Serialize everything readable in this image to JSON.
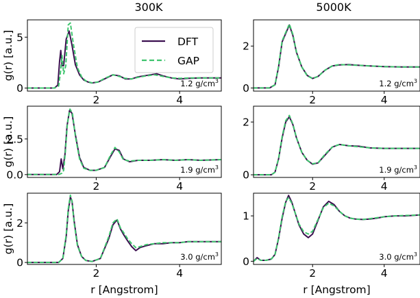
{
  "col_titles": [
    "300K",
    "5000K"
  ],
  "ylabel": "g(r) [a.u.]",
  "xlabel": "r [Angstrom]",
  "legend": [
    {
      "label": "DFT",
      "color": "#3b0f4f",
      "dash": false
    },
    {
      "label": "GAP",
      "color": "#3ec46d",
      "dash": true
    }
  ],
  "chart_data": [
    {
      "type": "line",
      "temperature": "300K",
      "density": "1.2 g/cm",
      "density_sup": "3",
      "xlim": [
        0.35,
        5.0
      ],
      "ylim": [
        -0.3,
        6.7
      ],
      "xticks": [
        2,
        4
      ],
      "yticks": [
        0,
        5
      ],
      "ytick_labels": [
        "0",
        "5"
      ],
      "show_xlabel": false,
      "show_ylabel": true,
      "show_legend": true,
      "series": [
        {
          "name": "DFT",
          "x": [
            0.35,
            1.0,
            1.08,
            1.12,
            1.15,
            1.18,
            1.22,
            1.28,
            1.35,
            1.42,
            1.5,
            1.6,
            1.7,
            1.8,
            1.9,
            2.05,
            2.2,
            2.4,
            2.55,
            2.7,
            2.85,
            3.0,
            3.15,
            3.3,
            3.45,
            3.6,
            3.8,
            4.0,
            4.2,
            4.5,
            4.8,
            5.0
          ],
          "y": [
            0,
            0,
            0.3,
            2.6,
            3.7,
            2.2,
            2.2,
            4.8,
            5.6,
            4.2,
            2.3,
            1.3,
            0.8,
            0.6,
            0.5,
            0.6,
            0.9,
            1.3,
            1.2,
            0.9,
            0.9,
            1.1,
            1.2,
            1.3,
            1.4,
            1.2,
            1.0,
            0.9,
            0.95,
            1.0,
            1.0,
            1.0
          ]
        },
        {
          "name": "GAP",
          "x": [
            0.35,
            1.0,
            1.1,
            1.15,
            1.18,
            1.22,
            1.27,
            1.33,
            1.38,
            1.45,
            1.55,
            1.65,
            1.75,
            1.9,
            2.05,
            2.2,
            2.4,
            2.55,
            2.7,
            2.85,
            3.0,
            3.2,
            3.4,
            3.6,
            3.8,
            4.0,
            4.3,
            4.6,
            5.0
          ],
          "y": [
            0,
            0,
            0.2,
            1.8,
            3.2,
            1.4,
            2.2,
            6.2,
            6.4,
            4.4,
            2.0,
            1.1,
            0.7,
            0.5,
            0.6,
            0.95,
            1.3,
            1.15,
            0.95,
            0.9,
            1.05,
            1.2,
            1.3,
            1.15,
            1.0,
            0.95,
            1.0,
            1.0,
            1.0
          ]
        }
      ]
    },
    {
      "type": "line",
      "temperature": "5000K",
      "density": "1.2 g/cm",
      "density_sup": "3",
      "xlim": [
        0.35,
        5.0
      ],
      "ylim": [
        -0.15,
        3.25
      ],
      "xticks": [
        2,
        4
      ],
      "yticks": [
        0,
        2
      ],
      "ytick_labels": [
        "0",
        "2"
      ],
      "show_xlabel": false,
      "show_ylabel": false,
      "show_legend": false,
      "series": [
        {
          "name": "DFT",
          "x": [
            0.35,
            0.8,
            0.95,
            1.05,
            1.15,
            1.25,
            1.35,
            1.45,
            1.55,
            1.7,
            1.85,
            2.0,
            2.15,
            2.35,
            2.55,
            2.75,
            3.0,
            3.3,
            3.6,
            4.0,
            4.5,
            5.0
          ],
          "y": [
            0,
            0,
            0.15,
            1.0,
            2.2,
            2.6,
            3.0,
            2.5,
            1.7,
            1.0,
            0.6,
            0.45,
            0.55,
            0.85,
            1.05,
            1.1,
            1.12,
            1.08,
            1.05,
            1.02,
            1.0,
            1.0
          ]
        },
        {
          "name": "GAP",
          "x": [
            0.35,
            0.8,
            0.95,
            1.05,
            1.15,
            1.25,
            1.35,
            1.45,
            1.55,
            1.7,
            1.85,
            2.0,
            2.15,
            2.35,
            2.55,
            2.75,
            3.0,
            3.3,
            3.6,
            4.0,
            4.5,
            5.0
          ],
          "y": [
            0,
            0,
            0.15,
            1.05,
            2.25,
            2.65,
            3.05,
            2.55,
            1.72,
            1.0,
            0.58,
            0.45,
            0.55,
            0.85,
            1.05,
            1.12,
            1.1,
            1.08,
            1.05,
            1.02,
            1.0,
            1.0
          ]
        }
      ]
    },
    {
      "type": "line",
      "temperature": "300K",
      "density": "1.9 g/cm",
      "density_sup": "3",
      "xlim": [
        0.35,
        5.0
      ],
      "ylim": [
        -0.2,
        4.8
      ],
      "xticks": [
        2,
        4
      ],
      "yticks": [
        0,
        2.5
      ],
      "ytick_labels": [
        "0.0",
        "2.5"
      ],
      "show_xlabel": false,
      "show_ylabel": true,
      "show_legend": false,
      "series": [
        {
          "name": "DFT",
          "x": [
            0.35,
            1.05,
            1.12,
            1.16,
            1.2,
            1.25,
            1.3,
            1.36,
            1.42,
            1.5,
            1.6,
            1.7,
            1.85,
            2.0,
            2.2,
            2.35,
            2.45,
            2.55,
            2.65,
            2.8,
            3.0,
            3.3,
            3.6,
            3.9,
            4.2,
            4.5,
            5.0
          ],
          "y": [
            0,
            0,
            0.2,
            1.1,
            0.4,
            1.4,
            3.4,
            4.5,
            4.3,
            2.8,
            1.2,
            0.5,
            0.3,
            0.3,
            0.5,
            1.3,
            1.8,
            1.7,
            1.1,
            0.9,
            1.0,
            1.0,
            1.05,
            1.0,
            1.05,
            1.0,
            1.05
          ]
        },
        {
          "name": "GAP",
          "x": [
            0.35,
            1.1,
            1.18,
            1.22,
            1.26,
            1.31,
            1.37,
            1.43,
            1.5,
            1.6,
            1.7,
            1.85,
            2.0,
            2.2,
            2.35,
            2.45,
            2.55,
            2.65,
            2.8,
            3.0,
            3.3,
            3.6,
            3.9,
            4.2,
            4.5,
            5.0
          ],
          "y": [
            0,
            0,
            0.1,
            0.3,
            1.6,
            3.6,
            4.6,
            4.3,
            2.7,
            1.1,
            0.45,
            0.3,
            0.3,
            0.5,
            1.4,
            1.9,
            1.6,
            1.05,
            0.95,
            1.0,
            1.0,
            1.05,
            1.0,
            1.05,
            1.0,
            1.05
          ]
        }
      ]
    },
    {
      "type": "line",
      "temperature": "5000K",
      "density": "1.9 g/cm",
      "density_sup": "3",
      "xlim": [
        0.35,
        5.0
      ],
      "ylim": [
        -0.1,
        2.6
      ],
      "xticks": [
        2,
        4
      ],
      "yticks": [
        0,
        2
      ],
      "ytick_labels": [
        "0",
        "2"
      ],
      "show_xlabel": false,
      "show_ylabel": false,
      "show_legend": false,
      "series": [
        {
          "name": "DFT",
          "x": [
            0.35,
            0.85,
            0.95,
            1.05,
            1.15,
            1.25,
            1.35,
            1.45,
            1.55,
            1.7,
            1.85,
            2.0,
            2.15,
            2.35,
            2.55,
            2.75,
            3.0,
            3.3,
            3.6,
            4.0,
            4.5,
            5.0
          ],
          "y": [
            0,
            0,
            0.1,
            0.6,
            1.4,
            2.0,
            2.2,
            1.9,
            1.4,
            0.85,
            0.55,
            0.4,
            0.45,
            0.75,
            1.05,
            1.15,
            1.1,
            1.08,
            1.02,
            1.0,
            1.0,
            1.0
          ]
        },
        {
          "name": "GAP",
          "x": [
            0.35,
            0.85,
            0.95,
            1.05,
            1.15,
            1.25,
            1.35,
            1.45,
            1.55,
            1.7,
            1.85,
            2.0,
            2.15,
            2.35,
            2.55,
            2.75,
            3.0,
            3.3,
            3.6,
            4.0,
            4.5,
            5.0
          ],
          "y": [
            0,
            0,
            0.1,
            0.62,
            1.45,
            2.05,
            2.25,
            1.92,
            1.4,
            0.85,
            0.55,
            0.42,
            0.45,
            0.78,
            1.05,
            1.15,
            1.1,
            1.06,
            1.02,
            1.0,
            1.0,
            1.0
          ]
        }
      ]
    },
    {
      "type": "line",
      "temperature": "300K",
      "density": "3.0 g/cm",
      "density_sup": "3",
      "xlim": [
        0.35,
        5.0
      ],
      "ylim": [
        -0.1,
        3.5
      ],
      "xticks": [
        2,
        4
      ],
      "yticks": [
        0,
        2
      ],
      "ytick_labels": [
        "0",
        "2"
      ],
      "show_xlabel": true,
      "show_ylabel": true,
      "show_legend": false,
      "series": [
        {
          "name": "DFT",
          "x": [
            0.35,
            1.1,
            1.2,
            1.28,
            1.33,
            1.38,
            1.42,
            1.47,
            1.55,
            1.65,
            1.75,
            1.9,
            2.1,
            2.3,
            2.4,
            2.5,
            2.58,
            2.66,
            2.75,
            2.85,
            2.95,
            3.05,
            3.2,
            3.4,
            3.6,
            3.8,
            4.0,
            4.2,
            4.5,
            4.8,
            5.0
          ],
          "y": [
            0,
            0,
            0.2,
            1.3,
            2.6,
            3.3,
            3.1,
            2.1,
            0.9,
            0.3,
            0.1,
            0.05,
            0.2,
            1.2,
            1.9,
            2.15,
            1.7,
            1.4,
            1.1,
            0.8,
            0.6,
            0.75,
            0.85,
            0.95,
            0.95,
            1.0,
            1.0,
            1.05,
            1.05,
            1.05,
            1.05
          ]
        },
        {
          "name": "GAP",
          "x": [
            0.35,
            1.1,
            1.2,
            1.28,
            1.33,
            1.38,
            1.42,
            1.47,
            1.55,
            1.65,
            1.75,
            1.9,
            2.1,
            2.3,
            2.4,
            2.5,
            2.58,
            2.66,
            2.75,
            2.85,
            2.95,
            3.05,
            3.2,
            3.4,
            3.6,
            3.8,
            4.0,
            4.2,
            4.5,
            4.8,
            5.0
          ],
          "y": [
            0,
            0,
            0.2,
            1.4,
            2.7,
            3.4,
            3.1,
            2.0,
            0.85,
            0.3,
            0.1,
            0.05,
            0.2,
            1.3,
            2.0,
            2.2,
            1.75,
            1.5,
            1.2,
            0.95,
            0.75,
            0.8,
            0.9,
            0.95,
            1.0,
            1.0,
            1.0,
            1.05,
            1.05,
            1.05,
            1.05
          ]
        }
      ]
    },
    {
      "type": "line",
      "temperature": "5000K",
      "density": "3.0 g/cm",
      "density_sup": "3",
      "xlim": [
        0.35,
        5.0
      ],
      "ylim": [
        -0.07,
        1.5
      ],
      "xticks": [
        2,
        4
      ],
      "yticks": [
        0,
        1
      ],
      "ytick_labels": [
        "0",
        "1"
      ],
      "show_xlabel": true,
      "show_ylabel": false,
      "show_legend": false,
      "series": [
        {
          "name": "DFT",
          "x": [
            0.35,
            0.45,
            0.55,
            0.7,
            0.85,
            0.95,
            1.05,
            1.15,
            1.25,
            1.33,
            1.42,
            1.52,
            1.62,
            1.75,
            1.88,
            2.0,
            2.15,
            2.3,
            2.45,
            2.6,
            2.75,
            2.9,
            3.05,
            3.2,
            3.4,
            3.6,
            3.8,
            4.0,
            4.3,
            4.6,
            5.0
          ],
          "y": [
            0,
            0.08,
            0.02,
            0.02,
            0.05,
            0.15,
            0.5,
            0.95,
            1.3,
            1.45,
            1.3,
            1.05,
            0.8,
            0.6,
            0.52,
            0.6,
            0.9,
            1.2,
            1.32,
            1.25,
            1.1,
            1.0,
            0.95,
            0.93,
            0.92,
            0.93,
            0.95,
            0.98,
            1.0,
            1.0,
            1.02
          ]
        },
        {
          "name": "GAP",
          "x": [
            0.35,
            0.45,
            0.55,
            0.7,
            0.85,
            0.95,
            1.05,
            1.15,
            1.25,
            1.33,
            1.42,
            1.52,
            1.62,
            1.75,
            1.88,
            2.0,
            2.15,
            2.3,
            2.45,
            2.6,
            2.75,
            2.9,
            3.05,
            3.2,
            3.4,
            3.6,
            3.8,
            4.0,
            4.3,
            4.6,
            5.0
          ],
          "y": [
            0,
            0.06,
            0.02,
            0.02,
            0.05,
            0.15,
            0.52,
            0.98,
            1.32,
            1.4,
            1.28,
            1.05,
            0.82,
            0.65,
            0.6,
            0.66,
            0.92,
            1.18,
            1.28,
            1.22,
            1.1,
            1.0,
            0.95,
            0.93,
            0.92,
            0.94,
            0.96,
            0.98,
            1.0,
            1.01,
            1.02
          ]
        }
      ]
    }
  ]
}
